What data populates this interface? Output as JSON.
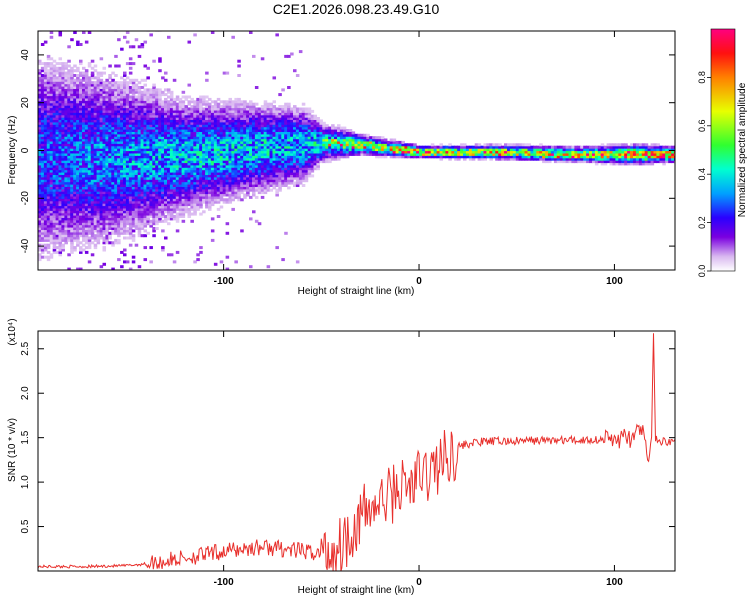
{
  "title": "C2E1.2026.098.23.49.G10",
  "chart_data": [
    {
      "type": "heatmap",
      "xlabel": "Height of straight line (km)",
      "ylabel": "Frequency (Hz)",
      "xlim": [
        -195,
        131
      ],
      "ylim": [
        -50,
        50
      ],
      "xticks": [
        -100,
        0,
        100
      ],
      "yticks": [
        -40,
        -20,
        0,
        20,
        40
      ],
      "colorbar": {
        "label": "Normalized spectral amplitude",
        "range": [
          0,
          1
        ],
        "ticks": [
          0.0,
          0.2,
          0.4,
          0.6,
          0.8
        ]
      },
      "ridge": [
        {
          "x": -195,
          "f": -3,
          "amp": 0.25,
          "spread": 22
        },
        {
          "x": -160,
          "f": -4,
          "amp": 0.3,
          "spread": 18
        },
        {
          "x": -120,
          "f": -3,
          "amp": 0.35,
          "spread": 12
        },
        {
          "x": -90,
          "f": 0,
          "amp": 0.35,
          "spread": 10
        },
        {
          "x": -60,
          "f": 2,
          "amp": 0.35,
          "spread": 8
        },
        {
          "x": -50,
          "f": 3,
          "amp": 0.4,
          "spread": 4
        },
        {
          "x": -30,
          "f": 2,
          "amp": 0.55,
          "spread": 2
        },
        {
          "x": -10,
          "f": 0,
          "amp": 0.6,
          "spread": 1.5
        },
        {
          "x": 0,
          "f": -1,
          "amp": 0.65,
          "spread": 1.2
        },
        {
          "x": 40,
          "f": -1,
          "amp": 0.55,
          "spread": 1.5
        },
        {
          "x": 80,
          "f": -2,
          "amp": 0.6,
          "spread": 1.5
        },
        {
          "x": 110,
          "f": -2,
          "amp": 0.65,
          "spread": 2
        },
        {
          "x": 131,
          "f": -2,
          "amp": 0.8,
          "spread": 1.5
        }
      ]
    },
    {
      "type": "line",
      "xlabel": "Height of straight line (km)",
      "ylabel": "SNR (10 * v/v)",
      "yscale_label": "(x10⁴)",
      "xlim": [
        -195,
        131
      ],
      "ylim": [
        0,
        2.7
      ],
      "xticks": [
        -100,
        0,
        100
      ],
      "yticks": [
        0.5,
        1.0,
        1.5,
        2.0,
        2.5
      ],
      "series": [
        {
          "color": "#e8302c",
          "x": [
            -195,
            -170,
            -150,
            -140,
            -130,
            -120,
            -110,
            -100,
            -90,
            -80,
            -70,
            -60,
            -50,
            -45,
            -40,
            -35,
            -30,
            -25,
            -20,
            -15,
            -10,
            -5,
            0,
            5,
            10,
            15,
            20,
            25,
            30,
            40,
            50,
            60,
            70,
            80,
            90,
            100,
            105,
            110,
            113,
            115,
            116,
            117,
            118,
            119,
            120,
            121,
            122,
            125,
            131
          ],
          "y": [
            0.05,
            0.05,
            0.06,
            0.08,
            0.11,
            0.15,
            0.18,
            0.22,
            0.25,
            0.27,
            0.25,
            0.22,
            0.2,
            0.22,
            0.3,
            0.45,
            0.6,
            0.7,
            0.75,
            0.85,
            0.95,
            0.95,
            1.05,
            1.1,
            1.2,
            1.3,
            1.4,
            1.43,
            1.45,
            1.46,
            1.46,
            1.47,
            1.47,
            1.47,
            1.48,
            1.48,
            1.5,
            1.5,
            1.55,
            1.6,
            1.45,
            1.2,
            1.3,
            1.5,
            2.65,
            1.5,
            1.45,
            1.46,
            1.46
          ]
        }
      ]
    }
  ]
}
